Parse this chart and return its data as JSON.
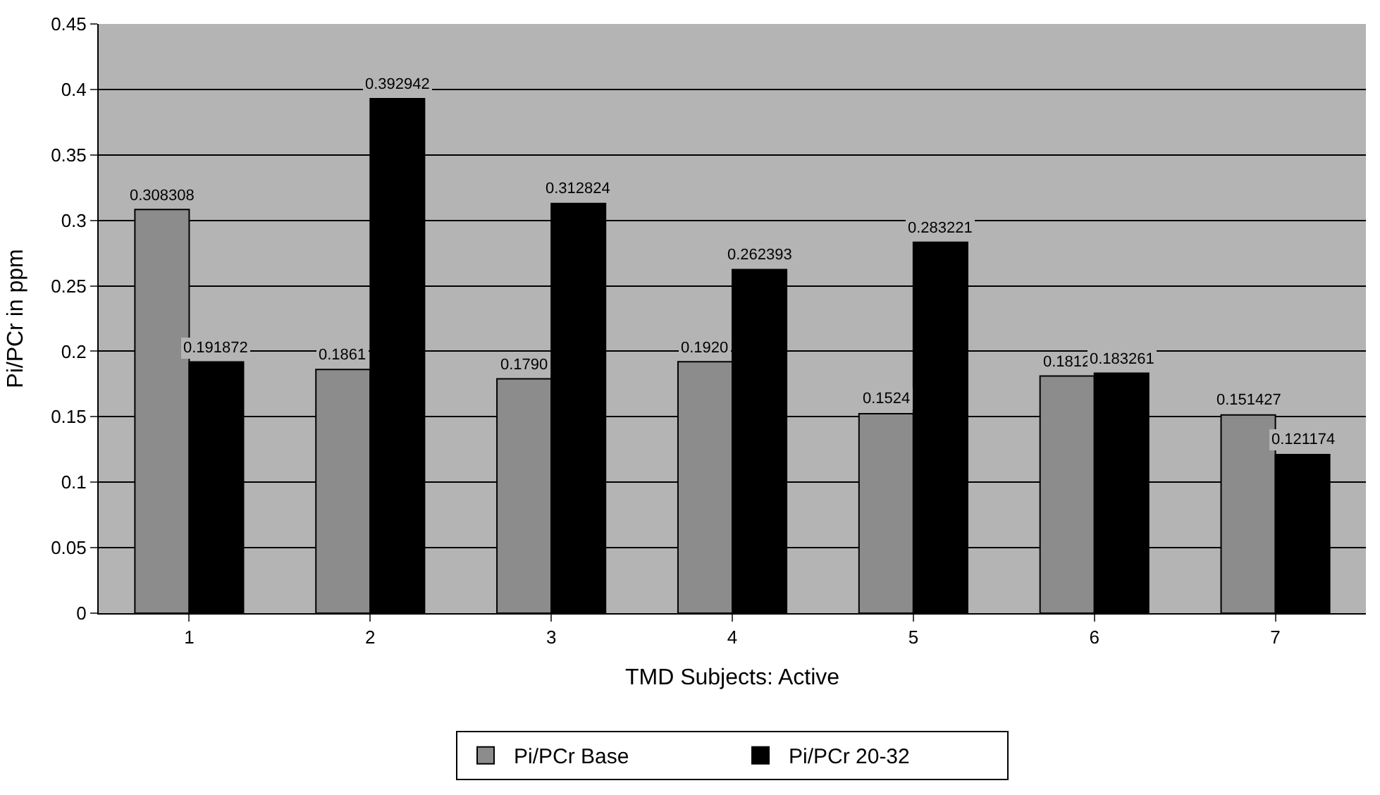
{
  "chart_data": {
    "type": "bar",
    "xlabel": "TMD Subjects: Active",
    "ylabel": "Pi/PCr in ppm",
    "categories": [
      "1",
      "2",
      "3",
      "4",
      "5",
      "6",
      "7"
    ],
    "series": [
      {
        "name": "Pi/PCr Base",
        "color": "#8c8c8c",
        "values": [
          0.308308,
          0.1861,
          0.179,
          0.192,
          0.1524,
          0.1812,
          0.151427
        ],
        "value_labels": [
          "0.308308",
          "0.1861",
          "0.1790",
          "0.1920",
          "0.1524",
          "0.1812",
          "0.151427"
        ]
      },
      {
        "name": "Pi/PCr 20-32",
        "color": "#000000",
        "values": [
          0.191872,
          0.392942,
          0.312824,
          0.262393,
          0.283221,
          0.183261,
          0.121174
        ],
        "value_labels": [
          "0.191872",
          "0.392942",
          "0.312824",
          "0.262393",
          "0.283221",
          "0.183261",
          "0.121174"
        ]
      }
    ],
    "ylim": [
      0,
      0.45
    ],
    "yticks": [
      0,
      0.05,
      0.1,
      0.15,
      0.2,
      0.25,
      0.3,
      0.35,
      0.4,
      0.45
    ],
    "grid": "y",
    "legend": "bottom"
  }
}
